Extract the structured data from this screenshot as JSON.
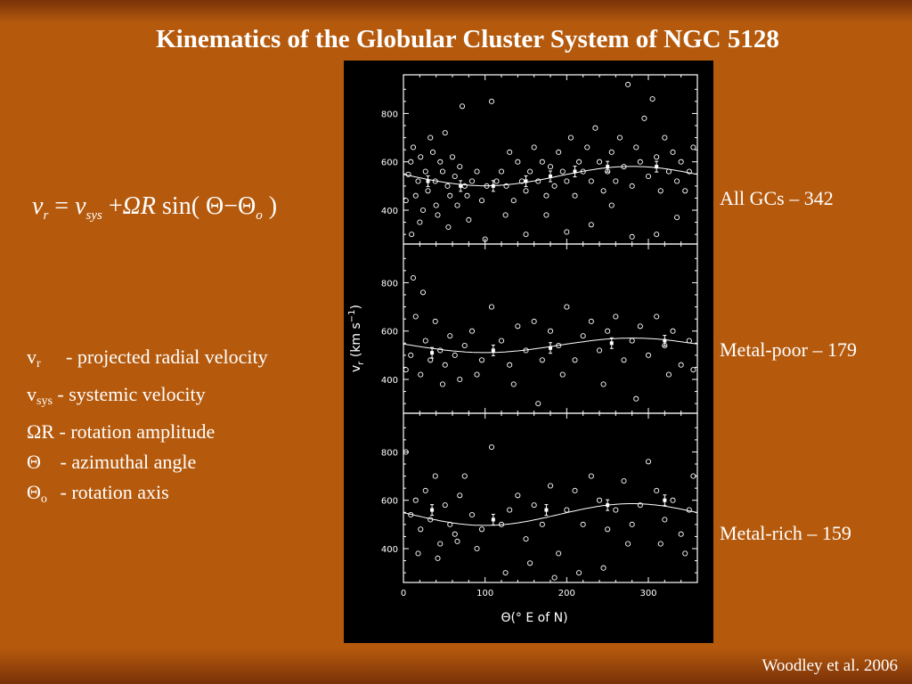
{
  "slide": {
    "title": "Kinematics of the Globular Cluster System of NGC 5128",
    "credit": "Woodley et al. 2006"
  },
  "equation": {
    "lhs_v": "v",
    "lhs_sub": "r",
    "eq": "=",
    "rhs_v": "v",
    "rhs_sub": "sys",
    "plus": "+",
    "omega_r": "ΩR",
    "sin": "sin(",
    "theta": "Θ",
    "minus": "−",
    "theta0": "Θ",
    "theta0_sub": "o",
    "close": ")"
  },
  "legend": [
    {
      "symbol": "v",
      "sub": "r",
      "desc": "- projected radial velocity"
    },
    {
      "symbol": "v",
      "sub": "sys",
      "desc": "- systemic velocity"
    },
    {
      "symbol": "ΩR",
      "sub": "",
      "desc": "-  rotation amplitude"
    },
    {
      "symbol": "Θ",
      "sub": "",
      "desc": "-  azimuthal angle"
    },
    {
      "symbol": "Θ",
      "sub": "o",
      "desc": "- rotation axis"
    }
  ],
  "panel_labels": [
    "All GCs – 342",
    "Metal-poor – 179",
    "Metal-rich – 159"
  ],
  "axes": {
    "y_label_main": "v",
    "y_label_sub": "r",
    "y_label_units": "(km s",
    "y_label_exp": "−1",
    "y_label_close": ")",
    "x_label": "Θ(° E of N)"
  },
  "chart_data": {
    "type": "scatter",
    "xlim": [
      0,
      360
    ],
    "ylim": [
      260,
      960
    ],
    "xticks": [
      0,
      100,
      200,
      300
    ],
    "yticks": [
      400,
      600,
      800
    ],
    "panels": [
      {
        "name": "All GCs – 342",
        "points": [
          [
            3,
            440
          ],
          [
            6,
            548
          ],
          [
            9,
            600
          ],
          [
            12,
            660
          ],
          [
            15,
            460
          ],
          [
            18,
            520
          ],
          [
            21,
            620
          ],
          [
            24,
            400
          ],
          [
            27,
            560
          ],
          [
            30,
            480
          ],
          [
            33,
            700
          ],
          [
            36,
            640
          ],
          [
            39,
            520
          ],
          [
            42,
            380
          ],
          [
            45,
            600
          ],
          [
            48,
            560
          ],
          [
            51,
            720
          ],
          [
            54,
            500
          ],
          [
            57,
            460
          ],
          [
            60,
            620
          ],
          [
            63,
            540
          ],
          [
            66,
            420
          ],
          [
            69,
            580
          ],
          [
            72,
            830
          ],
          [
            75,
            500
          ],
          [
            78,
            460
          ],
          [
            84,
            520
          ],
          [
            90,
            560
          ],
          [
            96,
            440
          ],
          [
            102,
            500
          ],
          [
            108,
            850
          ],
          [
            114,
            520
          ],
          [
            120,
            560
          ],
          [
            126,
            500
          ],
          [
            130,
            640
          ],
          [
            135,
            440
          ],
          [
            140,
            600
          ],
          [
            145,
            520
          ],
          [
            150,
            480
          ],
          [
            155,
            560
          ],
          [
            160,
            660
          ],
          [
            165,
            520
          ],
          [
            170,
            600
          ],
          [
            175,
            460
          ],
          [
            180,
            580
          ],
          [
            185,
            500
          ],
          [
            190,
            640
          ],
          [
            195,
            560
          ],
          [
            200,
            520
          ],
          [
            205,
            700
          ],
          [
            210,
            460
          ],
          [
            215,
            600
          ],
          [
            220,
            560
          ],
          [
            225,
            660
          ],
          [
            230,
            520
          ],
          [
            235,
            740
          ],
          [
            240,
            600
          ],
          [
            245,
            480
          ],
          [
            250,
            560
          ],
          [
            255,
            640
          ],
          [
            260,
            520
          ],
          [
            265,
            700
          ],
          [
            270,
            580
          ],
          [
            275,
            920
          ],
          [
            280,
            500
          ],
          [
            285,
            660
          ],
          [
            290,
            600
          ],
          [
            295,
            780
          ],
          [
            300,
            540
          ],
          [
            305,
            860
          ],
          [
            310,
            620
          ],
          [
            315,
            480
          ],
          [
            320,
            700
          ],
          [
            325,
            560
          ],
          [
            330,
            640
          ],
          [
            335,
            520
          ],
          [
            340,
            600
          ],
          [
            345,
            480
          ],
          [
            350,
            560
          ],
          [
            355,
            660
          ],
          [
            10,
            300
          ],
          [
            20,
            350
          ],
          [
            40,
            420
          ],
          [
            55,
            330
          ],
          [
            80,
            360
          ],
          [
            100,
            280
          ],
          [
            125,
            380
          ],
          [
            150,
            300
          ],
          [
            175,
            380
          ],
          [
            200,
            310
          ],
          [
            230,
            340
          ],
          [
            255,
            420
          ],
          [
            280,
            290
          ],
          [
            310,
            300
          ],
          [
            335,
            370
          ]
        ],
        "binned": [
          [
            30,
            520
          ],
          [
            70,
            500
          ],
          [
            110,
            500
          ],
          [
            150,
            520
          ],
          [
            180,
            540
          ],
          [
            210,
            560
          ],
          [
            250,
            580
          ],
          [
            310,
            580
          ]
        ],
        "fit": {
          "vsys": 541,
          "amplitude": 40,
          "theta0": 190
        }
      },
      {
        "name": "Metal-poor – 179",
        "points": [
          [
            3,
            440
          ],
          [
            9,
            500
          ],
          [
            15,
            660
          ],
          [
            21,
            420
          ],
          [
            27,
            560
          ],
          [
            33,
            480
          ],
          [
            39,
            640
          ],
          [
            45,
            520
          ],
          [
            51,
            460
          ],
          [
            57,
            580
          ],
          [
            63,
            500
          ],
          [
            69,
            400
          ],
          [
            75,
            540
          ],
          [
            84,
            600
          ],
          [
            96,
            480
          ],
          [
            108,
            700
          ],
          [
            120,
            560
          ],
          [
            130,
            460
          ],
          [
            140,
            620
          ],
          [
            150,
            520
          ],
          [
            160,
            640
          ],
          [
            170,
            480
          ],
          [
            180,
            600
          ],
          [
            190,
            540
          ],
          [
            200,
            700
          ],
          [
            210,
            480
          ],
          [
            220,
            580
          ],
          [
            230,
            640
          ],
          [
            240,
            520
          ],
          [
            250,
            600
          ],
          [
            260,
            660
          ],
          [
            270,
            480
          ],
          [
            280,
            560
          ],
          [
            290,
            620
          ],
          [
            300,
            500
          ],
          [
            310,
            660
          ],
          [
            320,
            540
          ],
          [
            330,
            600
          ],
          [
            340,
            460
          ],
          [
            350,
            560
          ],
          [
            12,
            820
          ],
          [
            24,
            760
          ],
          [
            48,
            380
          ],
          [
            90,
            420
          ],
          [
            135,
            380
          ],
          [
            165,
            300
          ],
          [
            195,
            420
          ],
          [
            245,
            380
          ],
          [
            285,
            320
          ],
          [
            325,
            420
          ],
          [
            355,
            440
          ]
        ],
        "binned": [
          [
            35,
            510
          ],
          [
            110,
            520
          ],
          [
            180,
            530
          ],
          [
            255,
            550
          ],
          [
            320,
            560
          ]
        ],
        "fit": {
          "vsys": 541,
          "amplitude": 30,
          "theta0": 190
        }
      },
      {
        "name": "Metal-rich – 159",
        "points": [
          [
            3,
            800
          ],
          [
            9,
            540
          ],
          [
            15,
            600
          ],
          [
            21,
            480
          ],
          [
            27,
            640
          ],
          [
            33,
            520
          ],
          [
            39,
            700
          ],
          [
            45,
            420
          ],
          [
            51,
            580
          ],
          [
            57,
            500
          ],
          [
            63,
            460
          ],
          [
            69,
            620
          ],
          [
            75,
            700
          ],
          [
            84,
            540
          ],
          [
            96,
            480
          ],
          [
            108,
            820
          ],
          [
            120,
            500
          ],
          [
            130,
            560
          ],
          [
            140,
            620
          ],
          [
            150,
            440
          ],
          [
            160,
            580
          ],
          [
            170,
            500
          ],
          [
            180,
            660
          ],
          [
            190,
            380
          ],
          [
            200,
            560
          ],
          [
            210,
            640
          ],
          [
            220,
            500
          ],
          [
            230,
            700
          ],
          [
            240,
            600
          ],
          [
            250,
            480
          ],
          [
            260,
            560
          ],
          [
            270,
            680
          ],
          [
            280,
            500
          ],
          [
            290,
            580
          ],
          [
            300,
            760
          ],
          [
            310,
            640
          ],
          [
            320,
            520
          ],
          [
            330,
            600
          ],
          [
            340,
            460
          ],
          [
            350,
            560
          ],
          [
            355,
            700
          ],
          [
            18,
            380
          ],
          [
            42,
            360
          ],
          [
            66,
            430
          ],
          [
            90,
            400
          ],
          [
            125,
            300
          ],
          [
            155,
            340
          ],
          [
            185,
            280
          ],
          [
            215,
            300
          ],
          [
            245,
            320
          ],
          [
            275,
            420
          ],
          [
            315,
            420
          ],
          [
            345,
            380
          ]
        ],
        "binned": [
          [
            35,
            560
          ],
          [
            110,
            520
          ],
          [
            175,
            560
          ],
          [
            250,
            580
          ],
          [
            320,
            600
          ]
        ],
        "fit": {
          "vsys": 541,
          "amplitude": 45,
          "theta0": 190
        }
      }
    ]
  }
}
